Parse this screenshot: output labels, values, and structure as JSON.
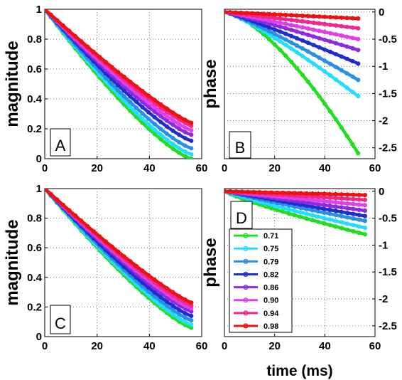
{
  "chart_data": [
    {
      "panel": "A",
      "type": "line",
      "quantity": "magnitude",
      "ylabel": "magnitude",
      "xlabel": "",
      "xlim": [
        0,
        60
      ],
      "ylim": [
        0,
        1
      ],
      "xticks": [
        "0",
        "20",
        "40",
        "60"
      ],
      "yticks": [
        "0",
        "0.2",
        "0.4",
        "0.6",
        "0.8",
        "1"
      ],
      "grid": true,
      "tick_side": "left",
      "series": [
        {
          "color": "#22dd22",
          "x": [
            0,
            56
          ],
          "end": 0.0,
          "gamma": 1.3
        },
        {
          "color": "#22ddff",
          "x": [
            0,
            56
          ],
          "end": 0.03,
          "gamma": 1.28
        },
        {
          "color": "#2a8fe6",
          "x": [
            0,
            56
          ],
          "end": 0.07,
          "gamma": 1.26
        },
        {
          "color": "#1f2ecc",
          "x": [
            0,
            56
          ],
          "end": 0.12,
          "gamma": 1.24
        },
        {
          "color": "#8c2be2",
          "x": [
            0,
            56
          ],
          "end": 0.16,
          "gamma": 1.22
        },
        {
          "color": "#e040e8",
          "x": [
            0,
            56
          ],
          "end": 0.19,
          "gamma": 1.2
        },
        {
          "color": "#f0288c",
          "x": [
            0,
            56
          ],
          "end": 0.22,
          "gamma": 1.18
        },
        {
          "color": "#ee1111",
          "x": [
            0,
            56
          ],
          "end": 0.24,
          "gamma": 1.16
        }
      ]
    },
    {
      "panel": "B",
      "type": "line",
      "quantity": "phase",
      "ylabel": "phase",
      "xlabel": "",
      "xlim": [
        0,
        60
      ],
      "ylim": [
        -2.7,
        0.05
      ],
      "xticks": [
        "0",
        "20",
        "40",
        "60"
      ],
      "yticks": [
        "0",
        "-0.5",
        "-1",
        "-1.5",
        "-2",
        "-2.5"
      ],
      "grid": true,
      "tick_side": "right",
      "series": [
        {
          "color": "#22dd22",
          "x": [
            0,
            53.3
          ],
          "end": -2.6,
          "gamma": 1.5
        },
        {
          "color": "#22ddff",
          "x": [
            0,
            53.3
          ],
          "end": -1.55,
          "gamma": 1.2
        },
        {
          "color": "#2a8fe6",
          "x": [
            0,
            53.3
          ],
          "end": -1.25,
          "gamma": 1.15
        },
        {
          "color": "#1f2ecc",
          "x": [
            0,
            53.3
          ],
          "end": -0.95,
          "gamma": 1.1
        },
        {
          "color": "#8c2be2",
          "x": [
            0,
            53.3
          ],
          "end": -0.7,
          "gamma": 1.08
        },
        {
          "color": "#e040e8",
          "x": [
            0,
            53.3
          ],
          "end": -0.5,
          "gamma": 1.05
        },
        {
          "color": "#f0288c",
          "x": [
            0,
            53.3
          ],
          "end": -0.3,
          "gamma": 1.02
        },
        {
          "color": "#ee1111",
          "x": [
            0,
            53.3
          ],
          "end": -0.12,
          "gamma": 1.0
        }
      ]
    },
    {
      "panel": "C",
      "type": "line",
      "quantity": "magnitude",
      "ylabel": "magnitude",
      "xlabel": "",
      "xlim": [
        0,
        60
      ],
      "ylim": [
        0,
        1
      ],
      "xticks": [
        "0",
        "20",
        "40",
        "60"
      ],
      "yticks": [
        "0",
        "0.2",
        "0.4",
        "0.6",
        "0.8",
        "1"
      ],
      "grid": true,
      "tick_side": "left",
      "series": [
        {
          "color": "#22dd22",
          "x": [
            0,
            56
          ],
          "end": 0.06,
          "gamma": 1.25
        },
        {
          "color": "#22ddff",
          "x": [
            0,
            56
          ],
          "end": 0.08,
          "gamma": 1.24
        },
        {
          "color": "#2a8fe6",
          "x": [
            0,
            56
          ],
          "end": 0.11,
          "gamma": 1.23
        },
        {
          "color": "#1f2ecc",
          "x": [
            0,
            56
          ],
          "end": 0.14,
          "gamma": 1.22
        },
        {
          "color": "#8c2be2",
          "x": [
            0,
            56
          ],
          "end": 0.17,
          "gamma": 1.2
        },
        {
          "color": "#e040e8",
          "x": [
            0,
            56
          ],
          "end": 0.19,
          "gamma": 1.18
        },
        {
          "color": "#f0288c",
          "x": [
            0,
            56
          ],
          "end": 0.21,
          "gamma": 1.17
        },
        {
          "color": "#ee1111",
          "x": [
            0,
            56
          ],
          "end": 0.23,
          "gamma": 1.16
        }
      ]
    },
    {
      "panel": "D",
      "type": "line",
      "quantity": "phase",
      "ylabel": "phase",
      "xlabel": "time (ms)",
      "xlim": [
        0,
        60
      ],
      "ylim": [
        -2.7,
        0.05
      ],
      "xticks": [
        "0",
        "20",
        "40",
        "60"
      ],
      "yticks": [
        "0",
        "-0.5",
        "-1",
        "-1.5",
        "-2",
        "-2.5"
      ],
      "grid": true,
      "tick_side": "right",
      "legend": {
        "placement": "left",
        "entries": [
          "0.71",
          "0.75",
          "0.79",
          "0.82",
          "0.86",
          "0.90",
          "0.94",
          "0.98"
        ]
      },
      "series": [
        {
          "name": "0.71",
          "color": "#22dd22",
          "x": [
            0,
            56
          ],
          "end": -0.8,
          "gamma": 0.85
        },
        {
          "name": "0.75",
          "color": "#22ddff",
          "x": [
            0,
            56
          ],
          "end": -0.68,
          "gamma": 0.9
        },
        {
          "name": "0.79",
          "color": "#2a8fe6",
          "x": [
            0,
            56
          ],
          "end": -0.55,
          "gamma": 0.95
        },
        {
          "name": "0.82",
          "color": "#1f2ecc",
          "x": [
            0,
            56
          ],
          "end": -0.46,
          "gamma": 1.0
        },
        {
          "name": "0.86",
          "color": "#8c2be2",
          "x": [
            0,
            56
          ],
          "end": -0.36,
          "gamma": 1.0
        },
        {
          "name": "0.90",
          "color": "#e040e8",
          "x": [
            0,
            56
          ],
          "end": -0.26,
          "gamma": 1.0
        },
        {
          "name": "0.94",
          "color": "#f0288c",
          "x": [
            0,
            56
          ],
          "end": -0.16,
          "gamma": 1.0
        },
        {
          "name": "0.98",
          "color": "#ee1111",
          "x": [
            0,
            56
          ],
          "end": -0.07,
          "gamma": 1.0
        }
      ]
    }
  ]
}
